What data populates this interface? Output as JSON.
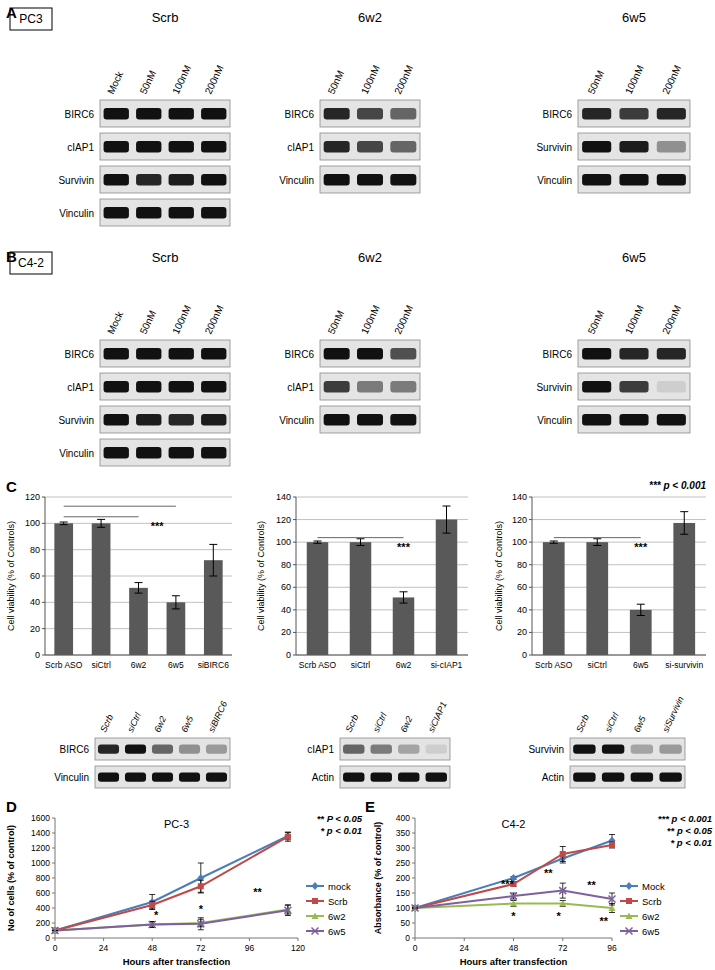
{
  "letters": [
    "A",
    "B",
    "C",
    "D",
    "E"
  ],
  "cell_lines": [
    "PC3",
    "C4-2"
  ],
  "blots": [
    {
      "title": "Scrb",
      "lanes": [
        "Mock",
        "50nM",
        "100nM",
        "200nM"
      ],
      "rows": [
        {
          "label": "BIRC6",
          "bands": [
            1,
            1,
            1,
            1
          ]
        },
        {
          "label": "cIAP1",
          "bands": [
            1,
            1,
            1,
            1
          ]
        },
        {
          "label": "Survivin",
          "bands": [
            1,
            0.9,
            0.95,
            1
          ]
        },
        {
          "label": "Vinculin",
          "bands": [
            1,
            1,
            1,
            1
          ]
        }
      ]
    },
    {
      "title": "6w2",
      "lanes": [
        "50nM",
        "100nM",
        "200nM"
      ],
      "rows": [
        {
          "label": "BIRC6",
          "bands": [
            0.9,
            0.75,
            0.6
          ]
        },
        {
          "label": "cIAP1",
          "bands": [
            0.9,
            0.75,
            0.6
          ]
        },
        {
          "label": "Vinculin",
          "bands": [
            1,
            1,
            1
          ]
        }
      ]
    },
    {
      "title": "6w5",
      "lanes": [
        "50nM",
        "100nM",
        "200nM"
      ],
      "rows": [
        {
          "label": "BIRC6",
          "bands": [
            0.9,
            0.8,
            0.9
          ]
        },
        {
          "label": "Survivin",
          "bands": [
            1,
            0.95,
            0.4
          ]
        },
        {
          "label": "Vinculin",
          "bands": [
            1,
            1,
            1
          ]
        }
      ]
    },
    {
      "title": "Scrb",
      "lanes": [
        "Mock",
        "50nM",
        "100nM",
        "200nM"
      ],
      "rows": [
        {
          "label": "BIRC6",
          "bands": [
            1,
            1,
            1,
            1
          ]
        },
        {
          "label": "cIAP1",
          "bands": [
            1,
            1,
            1,
            1
          ]
        },
        {
          "label": "Survivin",
          "bands": [
            1,
            0.95,
            0.9,
            0.95
          ]
        },
        {
          "label": "Vinculin",
          "bands": [
            1,
            1,
            1,
            1
          ]
        }
      ]
    },
    {
      "title": "6w2",
      "lanes": [
        "50nM",
        "100nM",
        "200nM"
      ],
      "rows": [
        {
          "label": "BIRC6",
          "bands": [
            1,
            1,
            0.7
          ]
        },
        {
          "label": "cIAP1",
          "bands": [
            0.8,
            0.5,
            0.5
          ]
        },
        {
          "label": "Vinculin",
          "bands": [
            1,
            1,
            1
          ]
        }
      ]
    },
    {
      "title": "6w5",
      "lanes": [
        "50nM",
        "100nM",
        "200nM"
      ],
      "rows": [
        {
          "label": "BIRC6",
          "bands": [
            1,
            0.9,
            0.9
          ]
        },
        {
          "label": "Survivin",
          "bands": [
            1,
            0.8,
            0.1
          ]
        },
        {
          "label": "Vinculin",
          "bands": [
            1,
            1,
            1
          ]
        }
      ]
    },
    {
      "lanes": [
        "Scrb",
        "siCtrl",
        "6w2",
        "6w5",
        "siBIRC6"
      ],
      "rows": [
        {
          "label": "BIRC6",
          "bands": [
            0.9,
            1,
            0.6,
            0.4,
            0.35
          ]
        },
        {
          "label": "Vinculin",
          "bands": [
            1,
            1,
            1,
            1,
            1
          ]
        }
      ]
    },
    {
      "lanes": [
        "Scrb",
        "siCtrl",
        "6w2",
        "siCIAP1"
      ],
      "rows": [
        {
          "label": "cIAP1",
          "bands": [
            0.6,
            0.5,
            0.3,
            0.1
          ]
        },
        {
          "label": "Actin",
          "bands": [
            1,
            1,
            1,
            1
          ]
        }
      ]
    },
    {
      "lanes": [
        "Scrb",
        "siCtrl",
        "6w5",
        "siSurvivin"
      ],
      "rows": [
        {
          "label": "Survivin",
          "bands": [
            1,
            1,
            0.3,
            0.35
          ]
        },
        {
          "label": "Actin",
          "bands": [
            1,
            1,
            1,
            1
          ]
        }
      ]
    }
  ],
  "chart_data": [
    {
      "type": "bar",
      "y_label": "Cell viability (% of Controls)",
      "categories": [
        "Scrb ASO",
        "siCtrl",
        "6w2",
        "6w5",
        "siBIRC6"
      ],
      "values": [
        100,
        100,
        51,
        40,
        72
      ],
      "errors": [
        1,
        3,
        4,
        5,
        12
      ],
      "color": "#595959",
      "ylim": [
        0,
        120
      ],
      "yticks": [
        0,
        20,
        40,
        60,
        80,
        100,
        120
      ],
      "grid": true,
      "brackets": [
        {
          "from": 0,
          "to": 3,
          "y": 113
        },
        {
          "from": 0,
          "to": 2,
          "y": 105
        }
      ],
      "annotations": [
        {
          "text": "***",
          "x": 2.5,
          "y": 95
        }
      ]
    },
    {
      "type": "bar",
      "y_label": "Cell viability (% of Controls)",
      "categories": [
        "Scrb ASO",
        "siCtrl",
        "6w2",
        "si-cIAP1"
      ],
      "values": [
        100,
        100,
        51,
        120
      ],
      "errors": [
        1,
        3,
        5,
        12
      ],
      "color": "#595959",
      "ylim": [
        0,
        140
      ],
      "yticks": [
        0,
        20,
        40,
        60,
        80,
        100,
        120,
        140
      ],
      "grid": true,
      "brackets": [
        {
          "from": 0,
          "to": 2,
          "y": 104
        }
      ],
      "annotations": [
        {
          "text": "***",
          "x": 2,
          "y": 92
        }
      ]
    },
    {
      "type": "bar",
      "y_label": "Cell viability (% of Controls)",
      "categories": [
        "Scrb ASO",
        "siCtrl",
        "6w5",
        "si-survivin"
      ],
      "values": [
        100,
        100,
        40,
        117
      ],
      "errors": [
        1,
        3,
        5,
        10
      ],
      "color": "#595959",
      "ylim": [
        0,
        140
      ],
      "yticks": [
        0,
        20,
        40,
        60,
        80,
        100,
        120,
        140
      ],
      "grid": true,
      "brackets": [
        {
          "from": 0,
          "to": 2,
          "y": 104
        }
      ],
      "annotations": [
        {
          "text": "***",
          "x": 2,
          "y": 92
        }
      ],
      "notes": [
        "*** p < 0.001"
      ]
    },
    {
      "type": "line",
      "title": "PC-3",
      "x_label": "Hours after transfection",
      "y_label": "No of cells (% of control)",
      "x": [
        0,
        48,
        72,
        115
      ],
      "xlim": [
        0,
        120
      ],
      "xticks": [
        0,
        24,
        48,
        72,
        96,
        120
      ],
      "ylim": [
        0,
        1600
      ],
      "yticks": [
        0,
        200,
        400,
        600,
        800,
        1000,
        1200,
        1400,
        1600
      ],
      "grid": false,
      "legend": "right",
      "series": [
        {
          "name": "mock",
          "color": "#4a7ebb",
          "marker": "diamond",
          "values": [
            100,
            480,
            800,
            1360
          ],
          "errors": [
            0,
            100,
            200,
            50
          ]
        },
        {
          "name": "Scrb",
          "color": "#be4b48",
          "marker": "square",
          "values": [
            100,
            440,
            690,
            1350
          ],
          "errors": [
            0,
            50,
            80,
            60
          ]
        },
        {
          "name": "6w2",
          "color": "#98b954",
          "marker": "triangle",
          "values": [
            100,
            180,
            200,
            380
          ],
          "errors": [
            0,
            40,
            50,
            60
          ]
        },
        {
          "name": "6w5",
          "color": "#7d60a0",
          "marker": "x",
          "values": [
            100,
            180,
            190,
            370
          ],
          "errors": [
            0,
            40,
            80,
            70
          ]
        }
      ],
      "annotations": [
        {
          "text": "*",
          "x": 50,
          "y": 250
        },
        {
          "text": "*",
          "x": 72,
          "y": 330
        },
        {
          "text": "**",
          "x": 100,
          "y": 560
        }
      ],
      "notes": [
        "** P < 0.05",
        "* p < 0.01"
      ]
    },
    {
      "type": "line",
      "title": "C4-2",
      "x_label": "Hours after transfection",
      "y_label": "Absorbance (% of control)",
      "x": [
        0,
        48,
        72,
        96
      ],
      "xlim": [
        0,
        96
      ],
      "xticks": [
        0,
        24,
        48,
        72,
        96
      ],
      "ylim": [
        0,
        400
      ],
      "yticks": [
        0,
        50,
        100,
        150,
        200,
        250,
        300,
        350,
        400
      ],
      "grid": false,
      "legend": "right",
      "series": [
        {
          "name": "Mock",
          "color": "#4a7ebb",
          "marker": "diamond",
          "values": [
            100,
            200,
            265,
            325
          ],
          "errors": [
            0,
            5,
            15,
            20
          ]
        },
        {
          "name": "Scrb",
          "color": "#be4b48",
          "marker": "square",
          "values": [
            100,
            180,
            280,
            310
          ],
          "errors": [
            0,
            8,
            25,
            10
          ]
        },
        {
          "name": "6w2",
          "color": "#98b954",
          "marker": "triangle",
          "values": [
            100,
            115,
            115,
            100
          ],
          "errors": [
            0,
            10,
            10,
            15
          ]
        },
        {
          "name": "6w5",
          "color": "#7d60a0",
          "marker": "x",
          "values": [
            100,
            140,
            158,
            130
          ],
          "errors": [
            0,
            10,
            25,
            20
          ]
        }
      ],
      "annotations": [
        {
          "text": "***",
          "x": 45,
          "y": 168
        },
        {
          "text": "**",
          "x": 65,
          "y": 205
        },
        {
          "text": "**",
          "x": 86,
          "y": 163
        },
        {
          "text": "*",
          "x": 48,
          "y": 60
        },
        {
          "text": "*",
          "x": 70,
          "y": 60
        },
        {
          "text": "**",
          "x": 92,
          "y": 45
        }
      ],
      "notes": [
        "*** p < 0.001",
        "** p < 0.05",
        "* p < 0.01"
      ]
    }
  ]
}
